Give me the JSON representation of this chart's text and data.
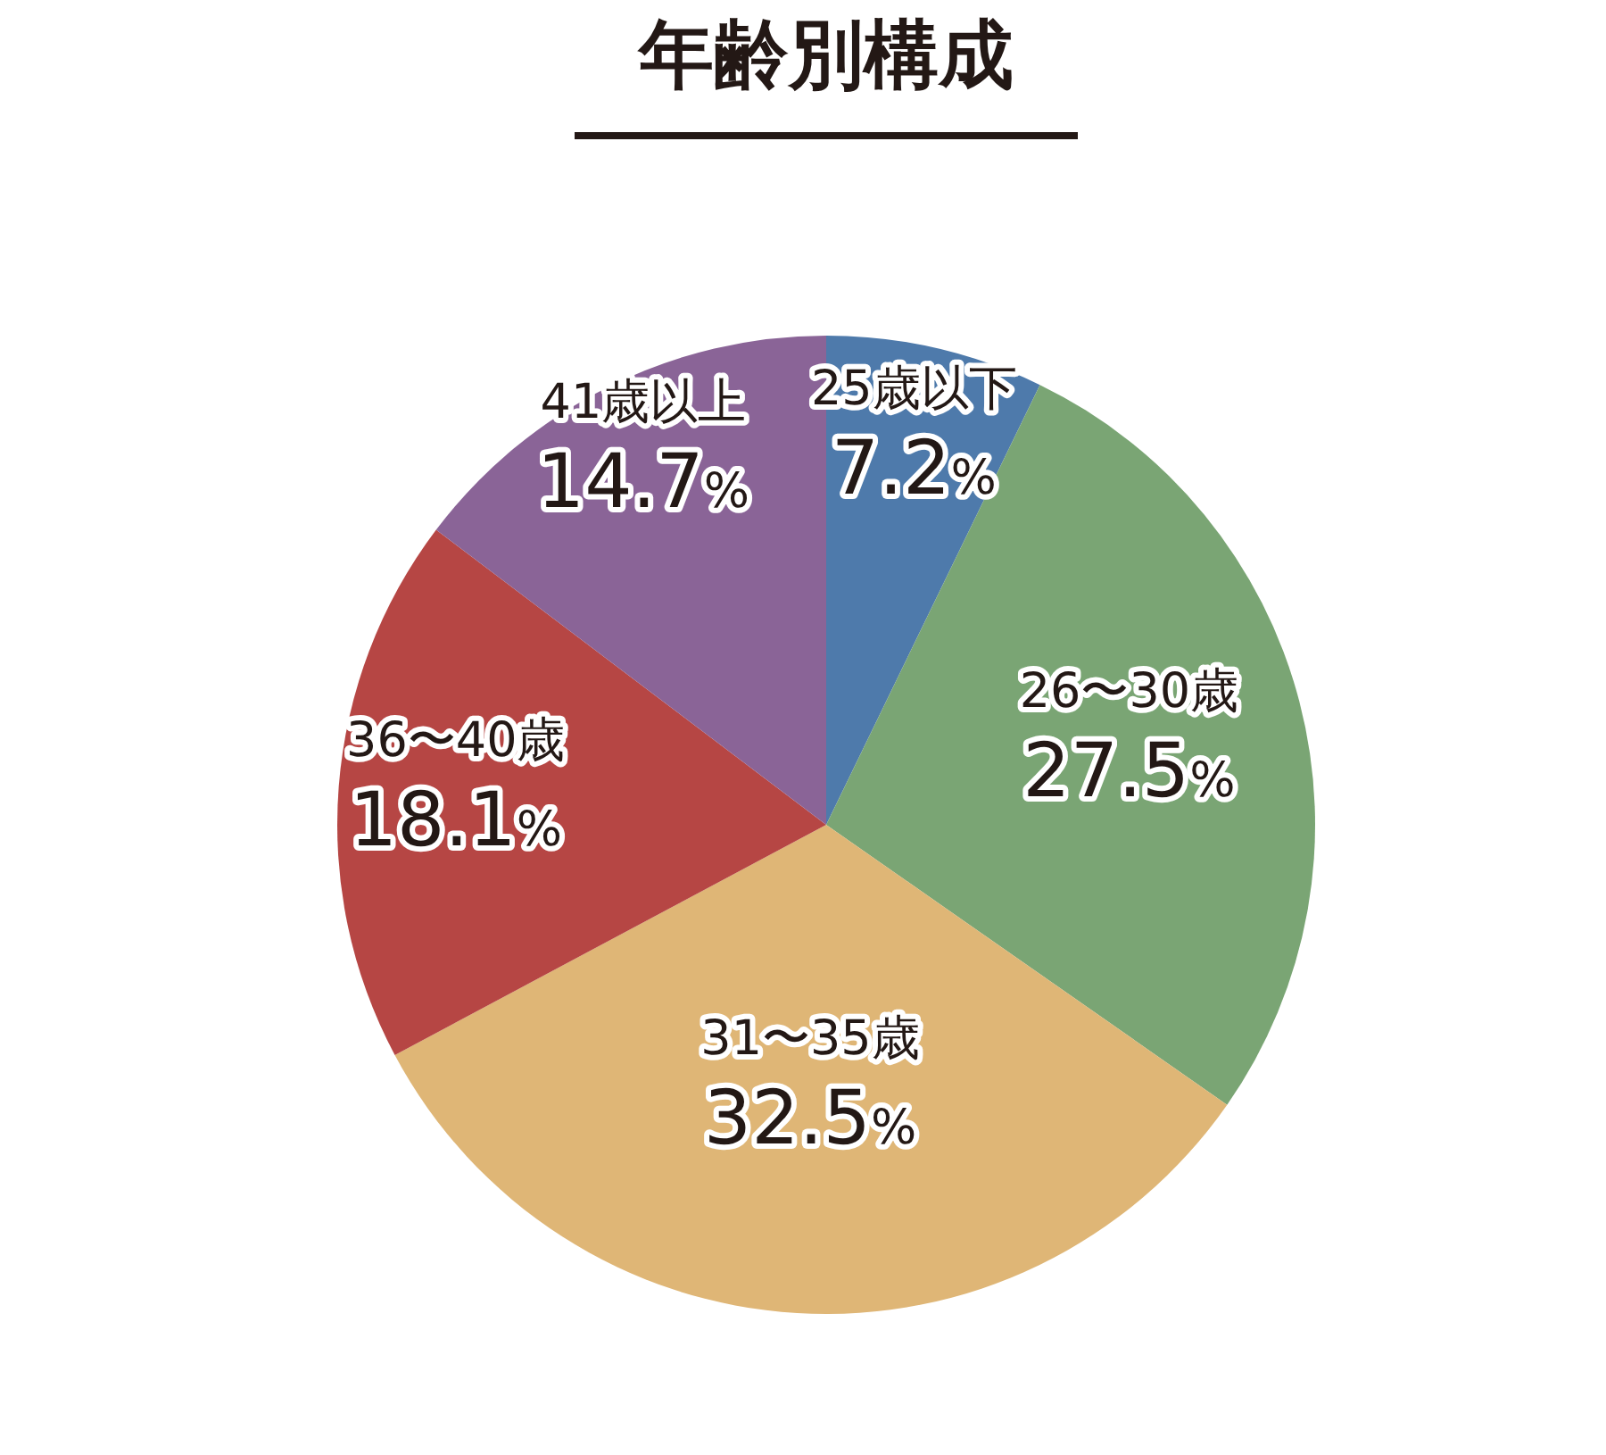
{
  "chart_data": {
    "type": "pie",
    "title": "年齢別構成",
    "categories": [
      "25歳以下",
      "26〜30歳",
      "31〜35歳",
      "36〜40歳",
      "41歳以上"
    ],
    "values": [
      7.2,
      27.5,
      32.5,
      18.1,
      14.7
    ],
    "value_labels": [
      "7.2%",
      "27.5%",
      "32.5%",
      "18.1%",
      "14.7%"
    ],
    "colors": [
      "#4e7aab",
      "#7aa574",
      "#dfb676",
      "#b64644",
      "#8a6497"
    ]
  }
}
